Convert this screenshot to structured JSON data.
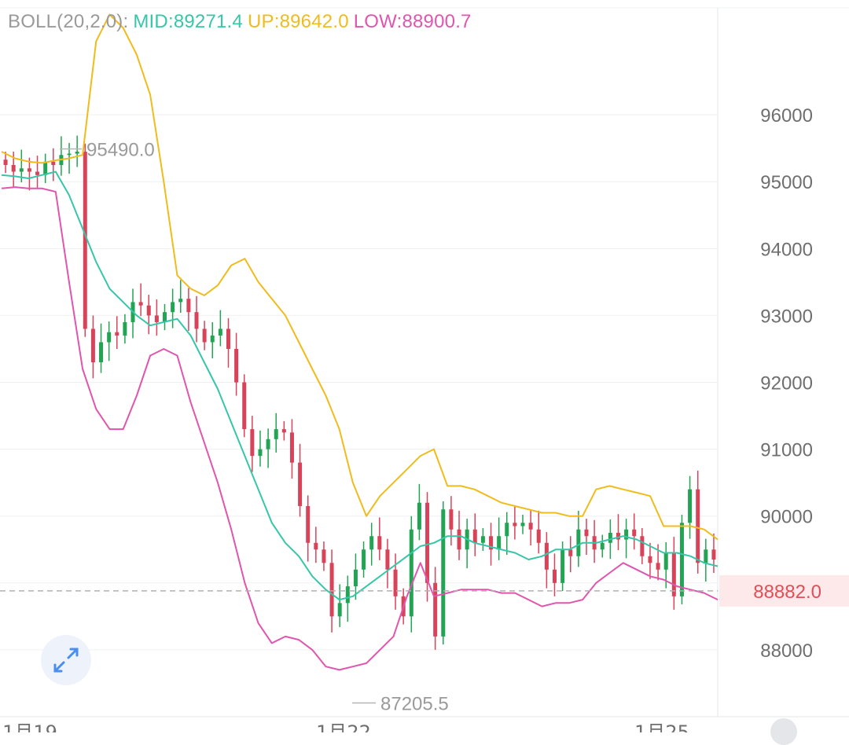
{
  "indicator": {
    "name": "BOLL(20,2.0):",
    "mid": "MID:89271.4",
    "up": "UP:89642.0",
    "low": "LOW:88900.7"
  },
  "colors": {
    "up_candle": "#22a454",
    "down_candle": "#d9435a",
    "mid": "#36c6a8",
    "upper": "#f0bc1c",
    "lower": "#e055ae",
    "grid": "#eef0f3",
    "axis_text": "#6f6f6f",
    "price_line": "#b0b0b0",
    "price_tag_bg": "#fde9ea",
    "price_tag_text": "#e54d56"
  },
  "chart_data": {
    "type": "candlestick",
    "y_ticks": [
      88000,
      89000,
      90000,
      91000,
      92000,
      93000,
      94000,
      95000,
      96000
    ],
    "ylim": [
      87000,
      97600
    ],
    "x_labels": [
      "1月19",
      "1月22",
      "1月25"
    ],
    "current_price": "88882.0",
    "high_label": "95490.0",
    "low_label": "87205.5",
    "candle_count": 90,
    "closes": [
      95250,
      95150,
      95200,
      95150,
      95100,
      95300,
      95250,
      95400,
      95420,
      95450,
      92800,
      92300,
      92600,
      92750,
      92700,
      92900,
      93200,
      93150,
      93000,
      92900,
      93050,
      93200,
      93250,
      93050,
      92800,
      92600,
      92700,
      92800,
      92500,
      92000,
      91300,
      90900,
      91000,
      91150,
      91300,
      91250,
      90800,
      90150,
      89600,
      89500,
      89300,
      88500,
      88700,
      88950,
      89200,
      89500,
      89700,
      89500,
      89200,
      88800,
      88500,
      89800,
      90200,
      89000,
      88200,
      90100,
      89800,
      89500,
      89800,
      89600,
      89700,
      89500,
      89700,
      89900,
      89850,
      89900,
      89800,
      89600,
      89200,
      89000,
      89500,
      89400,
      89800,
      89700,
      89500,
      89600,
      89750,
      89650,
      89800,
      89700,
      89400,
      89300,
      89200,
      89450,
      88800,
      89900,
      90400,
      89300,
      89500,
      89350
    ],
    "upper_band": [
      95450,
      95350,
      95300,
      95280,
      95320,
      95350,
      95400,
      97100,
      97500,
      97300,
      96900,
      96300,
      95000,
      93600,
      93400,
      93300,
      93450,
      93750,
      93850,
      93500,
      93250,
      93000,
      92600,
      92200,
      91800,
      91300,
      90500,
      90000,
      90300,
      90500,
      90700,
      90900,
      91000,
      90450,
      90450,
      90400,
      90300,
      90200,
      90150,
      90100,
      90050,
      90050,
      90000,
      90000,
      90400,
      90450,
      90400,
      90350,
      90300,
      89850,
      89850,
      89850,
      89800,
      89650
    ],
    "middle_band": [
      95100,
      95080,
      95050,
      95100,
      95150,
      94800,
      94300,
      93800,
      93400,
      93200,
      93000,
      92850,
      92900,
      92950,
      92700,
      92300,
      91900,
      91400,
      90900,
      90400,
      89900,
      89600,
      89400,
      89100,
      88900,
      88750,
      88800,
      88950,
      89100,
      89250,
      89400,
      89550,
      89600,
      89700,
      89700,
      89600,
      89550,
      89500,
      89450,
      89350,
      89400,
      89500,
      89500,
      89600,
      89600,
      89650,
      89700,
      89650,
      89550,
      89450,
      89450,
      89400,
      89300,
      89250
    ],
    "lower_band": [
      94900,
      94920,
      94900,
      94900,
      94850,
      93500,
      92200,
      91600,
      91300,
      91300,
      91800,
      92400,
      92500,
      92400,
      91700,
      91100,
      90500,
      89800,
      89000,
      88400,
      88100,
      88200,
      88150,
      88000,
      87750,
      87700,
      87750,
      87800,
      88000,
      88200,
      88800,
      89300,
      88800,
      88850,
      88900,
      88900,
      88900,
      88850,
      88850,
      88750,
      88650,
      88700,
      88700,
      88750,
      89000,
      89150,
      89300,
      89200,
      89100,
      89050,
      88950,
      88900,
      88850,
      88750
    ]
  }
}
